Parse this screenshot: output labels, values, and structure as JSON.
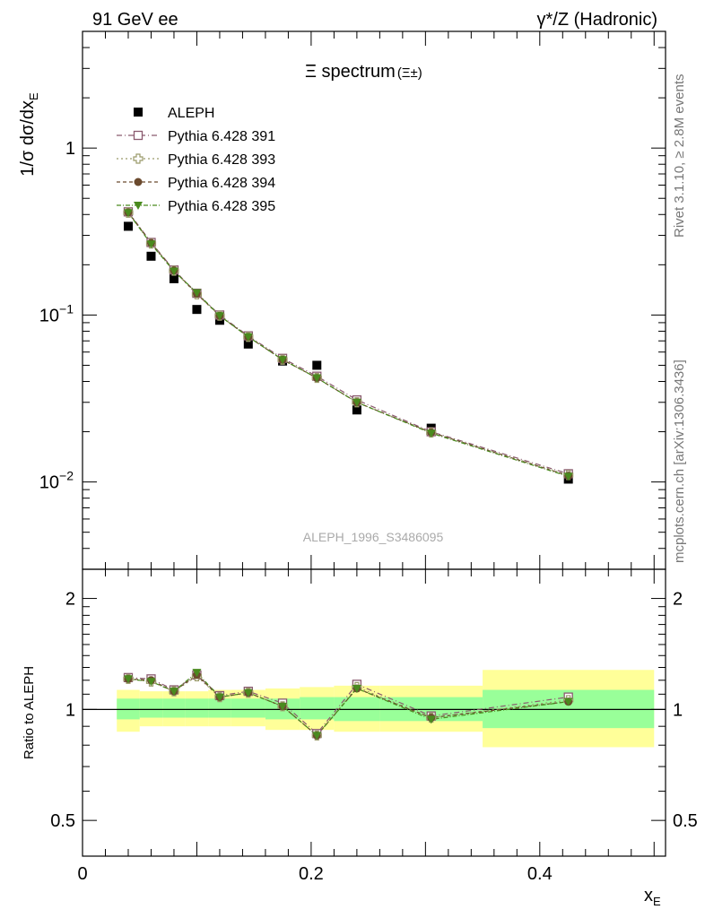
{
  "header": {
    "left": "91 GeV ee",
    "right": "γ*/Z (Hadronic)"
  },
  "side_labels": {
    "rivet": "Rivet 3.1.10, ≥ 2.8M events",
    "mcplots": "mcplots.cern.ch [arXiv:1306.3436]"
  },
  "watermark": "ALEPH_1996_S3486095",
  "colors": {
    "data": "#000000",
    "s391": "#8a5a6e",
    "s393": "#9a9a6a",
    "s394": "#6b4a2e",
    "s395": "#4a8a1e",
    "band_inner": "#99ff99",
    "band_outer": "#ffff99"
  },
  "chart_data": [
    {
      "type": "scatter",
      "title": "Ξ spectrum",
      "title_suffix": "(Ξ±)",
      "ylabel": "1/σ dσ/dx",
      "ylabel_sub": "E",
      "yscale": "log",
      "ylim": [
        0.003,
        5
      ],
      "xlim": [
        0,
        0.51
      ],
      "y_ticks": [
        {
          "v": 1,
          "label": "1",
          "base": "",
          "exp": ""
        },
        {
          "v": 0.1,
          "label": "",
          "base": "10",
          "exp": "−1"
        },
        {
          "v": 0.01,
          "label": "",
          "base": "10",
          "exp": "−2"
        }
      ],
      "legend_position": "top-left",
      "x": [
        0.04,
        0.06,
        0.08,
        0.1,
        0.12,
        0.145,
        0.175,
        0.205,
        0.24,
        0.305,
        0.425
      ],
      "series": [
        {
          "name": "ALEPH",
          "key": "data",
          "marker": "square",
          "values": [
            0.34,
            0.225,
            0.165,
            0.108,
            0.093,
            0.067,
            0.053,
            0.05,
            0.027,
            0.021,
            0.0104
          ]
        },
        {
          "name": "Pythia 6.428 391",
          "key": "s391",
          "marker": "open-square",
          "values": [
            0.415,
            0.272,
            0.186,
            0.135,
            0.1,
            0.075,
            0.055,
            0.043,
            0.031,
            0.02,
            0.0112
          ]
        },
        {
          "name": "Pythia 6.428 393",
          "key": "s393",
          "marker": "open-cross",
          "values": [
            0.41,
            0.268,
            0.184,
            0.133,
            0.099,
            0.074,
            0.054,
            0.042,
            0.03,
            0.0198,
            0.011
          ]
        },
        {
          "name": "Pythia 6.428 394",
          "key": "s394",
          "marker": "circle",
          "values": [
            0.412,
            0.27,
            0.185,
            0.134,
            0.099,
            0.074,
            0.054,
            0.042,
            0.03,
            0.0198,
            0.0109
          ]
        },
        {
          "name": "Pythia 6.428 395",
          "key": "s395",
          "marker": "triangle-down",
          "values": [
            0.41,
            0.266,
            0.183,
            0.136,
            0.099,
            0.074,
            0.054,
            0.042,
            0.03,
            0.0196,
            0.0108
          ]
        }
      ]
    },
    {
      "type": "scatter",
      "ylabel": "Ratio to ALEPH",
      "xlabel": "x",
      "xlabel_sub": "E",
      "yscale": "log",
      "ylim": [
        0.4,
        2.4
      ],
      "xlim": [
        0,
        0.51
      ],
      "y_ticks": [
        {
          "v": 2,
          "label": "2"
        },
        {
          "v": 1,
          "label": "1"
        },
        {
          "v": 0.5,
          "label": "0.5"
        }
      ],
      "x_ticks": [
        {
          "v": 0,
          "label": "0"
        },
        {
          "v": 0.2,
          "label": "0.2"
        },
        {
          "v": 0.4,
          "label": "0.4"
        }
      ],
      "bands": [
        {
          "x0": 0.03,
          "x1": 0.05,
          "inner": [
            0.94,
            1.07
          ],
          "outer": [
            0.87,
            1.13
          ]
        },
        {
          "x0": 0.05,
          "x1": 0.07,
          "inner": [
            0.95,
            1.07
          ],
          "outer": [
            0.9,
            1.12
          ]
        },
        {
          "x0": 0.07,
          "x1": 0.09,
          "inner": [
            0.95,
            1.07
          ],
          "outer": [
            0.9,
            1.12
          ]
        },
        {
          "x0": 0.09,
          "x1": 0.11,
          "inner": [
            0.95,
            1.07
          ],
          "outer": [
            0.9,
            1.12
          ]
        },
        {
          "x0": 0.11,
          "x1": 0.13,
          "inner": [
            0.95,
            1.07
          ],
          "outer": [
            0.9,
            1.13
          ]
        },
        {
          "x0": 0.13,
          "x1": 0.16,
          "inner": [
            0.95,
            1.07
          ],
          "outer": [
            0.9,
            1.13
          ]
        },
        {
          "x0": 0.16,
          "x1": 0.19,
          "inner": [
            0.94,
            1.07
          ],
          "outer": [
            0.88,
            1.14
          ]
        },
        {
          "x0": 0.19,
          "x1": 0.22,
          "inner": [
            0.94,
            1.08
          ],
          "outer": [
            0.88,
            1.15
          ]
        },
        {
          "x0": 0.22,
          "x1": 0.26,
          "inner": [
            0.93,
            1.08
          ],
          "outer": [
            0.87,
            1.16
          ]
        },
        {
          "x0": 0.26,
          "x1": 0.35,
          "inner": [
            0.93,
            1.08
          ],
          "outer": [
            0.87,
            1.16
          ]
        },
        {
          "x0": 0.35,
          "x1": 0.5,
          "inner": [
            0.89,
            1.13
          ],
          "outer": [
            0.79,
            1.28
          ]
        }
      ],
      "x": [
        0.04,
        0.06,
        0.08,
        0.1,
        0.12,
        0.145,
        0.175,
        0.205,
        0.24,
        0.305,
        0.425
      ],
      "series": [
        {
          "key": "s391",
          "marker": "open-square",
          "values": [
            1.22,
            1.21,
            1.13,
            1.24,
            1.09,
            1.12,
            1.04,
            0.86,
            1.17,
            0.96,
            1.08
          ]
        },
        {
          "key": "s393",
          "marker": "open-cross",
          "values": [
            1.21,
            1.19,
            1.12,
            1.23,
            1.08,
            1.11,
            1.02,
            0.85,
            1.15,
            0.95,
            1.06
          ]
        },
        {
          "key": "s394",
          "marker": "circle",
          "values": [
            1.21,
            1.2,
            1.12,
            1.24,
            1.08,
            1.11,
            1.02,
            0.85,
            1.14,
            0.95,
            1.05
          ]
        },
        {
          "key": "s395",
          "marker": "triangle-down",
          "values": [
            1.21,
            1.19,
            1.12,
            1.26,
            1.08,
            1.11,
            1.02,
            0.85,
            1.14,
            0.94,
            1.05
          ]
        }
      ]
    }
  ]
}
